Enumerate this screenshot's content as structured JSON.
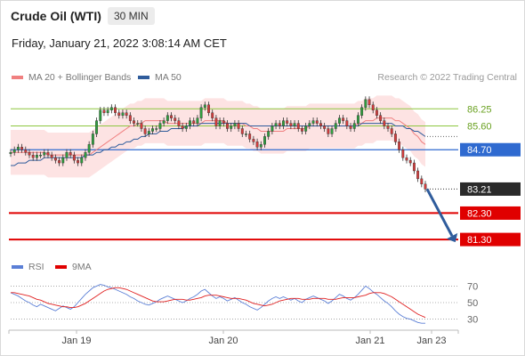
{
  "header": {
    "title": "Crude Oil (WTI)",
    "timeframe": "30 MIN",
    "datetime": "Friday, January 21, 2022 3:08:14 AM CET"
  },
  "legend": {
    "items": [
      {
        "label": "MA 20 + Bollinger Bands",
        "color": "#f08080"
      },
      {
        "label": "MA 50",
        "color": "#2f5c9c"
      }
    ],
    "credit": "Research © 2022 Trading Central"
  },
  "rsi_legend": {
    "items": [
      {
        "label": "RSI",
        "color": "#5b7fd6"
      },
      {
        "label": "9MA",
        "color": "#e02020"
      }
    ]
  },
  "chart_data": {
    "type": "candlestick",
    "x_ticks": [
      "Jan 19",
      "Jan 20",
      "Jan 21",
      "Jan 23"
    ],
    "ylim": [
      81.0,
      87.0
    ],
    "levels": [
      {
        "value": "86.25",
        "kind": "resistance-line",
        "color": "#8dc63f"
      },
      {
        "value": "85.60",
        "kind": "resistance-line",
        "color": "#8dc63f"
      },
      {
        "value": "84.70",
        "kind": "pivot",
        "color": "#2f6ad0"
      },
      {
        "value": "83.21",
        "kind": "last-price",
        "color": "#2a2a2a"
      },
      {
        "value": "82.30",
        "kind": "support",
        "color": "#e00000"
      },
      {
        "value": "81.30",
        "kind": "support",
        "color": "#e00000"
      }
    ],
    "close": [
      84.6,
      84.7,
      84.8,
      84.7,
      84.6,
      84.5,
      84.4,
      84.5,
      84.5,
      84.6,
      84.5,
      84.4,
      84.3,
      84.2,
      84.4,
      84.6,
      84.5,
      84.3,
      84.2,
      84.4,
      84.6,
      84.9,
      85.3,
      85.8,
      86.2,
      86.1,
      86.2,
      86.3,
      86.1,
      86.0,
      86.1,
      86.0,
      85.8,
      85.7,
      85.7,
      85.5,
      85.3,
      85.4,
      85.5,
      85.5,
      85.7,
      85.8,
      86.0,
      85.9,
      85.8,
      85.6,
      85.5,
      85.6,
      85.8,
      85.7,
      85.9,
      86.3,
      86.4,
      86.1,
      85.9,
      85.6,
      85.8,
      85.7,
      85.5,
      85.6,
      85.7,
      85.5,
      85.3,
      85.3,
      85.1,
      85.0,
      84.8,
      84.9,
      85.2,
      85.4,
      85.6,
      85.7,
      85.6,
      85.8,
      85.7,
      85.6,
      85.7,
      85.5,
      85.4,
      85.6,
      85.7,
      85.8,
      85.7,
      85.6,
      85.5,
      85.3,
      85.5,
      85.7,
      85.9,
      85.8,
      85.6,
      85.5,
      85.7,
      86.0,
      86.3,
      86.6,
      86.4,
      86.2,
      86.0,
      85.8,
      85.6,
      85.5,
      85.3,
      85.0,
      84.7,
      84.4,
      84.3,
      84.2,
      83.9,
      83.6,
      83.4,
      83.21
    ],
    "ma20": [
      84.6,
      84.6,
      84.6,
      84.6,
      84.6,
      84.6,
      84.6,
      84.6,
      84.6,
      84.6,
      84.5,
      84.5,
      84.5,
      84.5,
      84.5,
      84.5,
      84.5,
      84.5,
      84.5,
      84.5,
      84.5,
      84.5,
      84.6,
      84.7,
      84.8,
      84.9,
      85.0,
      85.1,
      85.2,
      85.3,
      85.4,
      85.5,
      85.6,
      85.6,
      85.7,
      85.7,
      85.8,
      85.8,
      85.8,
      85.8,
      85.8,
      85.8,
      85.7,
      85.7,
      85.7,
      85.7,
      85.7,
      85.7,
      85.7,
      85.7,
      85.7,
      85.7,
      85.8,
      85.8,
      85.8,
      85.8,
      85.8,
      85.8,
      85.7,
      85.7,
      85.7,
      85.7,
      85.7,
      85.6,
      85.6,
      85.5,
      85.5,
      85.4,
      85.4,
      85.4,
      85.4,
      85.4,
      85.4,
      85.4,
      85.5,
      85.5,
      85.5,
      85.5,
      85.5,
      85.5,
      85.6,
      85.6,
      85.6,
      85.6,
      85.6,
      85.6,
      85.6,
      85.6,
      85.6,
      85.6,
      85.6,
      85.6,
      85.6,
      85.7,
      85.7,
      85.8,
      85.8,
      85.8,
      85.9,
      85.9,
      85.9,
      85.9,
      85.9,
      85.8,
      85.8,
      85.7,
      85.6,
      85.5,
      85.3,
      85.2,
      85.0,
      84.9
    ],
    "ma50": [
      84.1,
      84.1,
      84.2,
      84.2,
      84.2,
      84.3,
      84.3,
      84.3,
      84.3,
      84.4,
      84.4,
      84.4,
      84.4,
      84.4,
      84.4,
      84.4,
      84.4,
      84.4,
      84.4,
      84.4,
      84.5,
      84.5,
      84.5,
      84.6,
      84.6,
      84.7,
      84.7,
      84.8,
      84.8,
      84.9,
      84.9,
      85.0,
      85.0,
      85.1,
      85.1,
      85.2,
      85.2,
      85.3,
      85.3,
      85.3,
      85.4,
      85.4,
      85.4,
      85.5,
      85.5,
      85.5,
      85.5,
      85.6,
      85.6,
      85.6,
      85.6,
      85.7,
      85.7,
      85.7,
      85.7,
      85.7,
      85.7,
      85.7,
      85.7,
      85.7,
      85.7,
      85.7,
      85.7,
      85.7,
      85.6,
      85.6,
      85.6,
      85.6,
      85.6,
      85.6,
      85.6,
      85.6,
      85.6,
      85.6,
      85.6,
      85.6,
      85.6,
      85.6,
      85.6,
      85.6,
      85.6,
      85.6,
      85.6,
      85.6,
      85.6,
      85.6,
      85.6,
      85.6,
      85.6,
      85.6,
      85.6,
      85.6,
      85.6,
      85.6,
      85.7,
      85.7,
      85.7,
      85.7,
      85.7,
      85.7,
      85.7,
      85.7,
      85.7,
      85.6,
      85.6,
      85.6,
      85.5,
      85.5,
      85.4,
      85.4,
      85.3,
      85.2
    ],
    "bb_width": 0.85,
    "forecast_arrow": {
      "from": 83.21,
      "to": 81.3
    },
    "rsi": {
      "ticks": [
        "70",
        "50",
        "30"
      ],
      "ylim": [
        22,
        78
      ],
      "rsi": [
        62,
        60,
        58,
        55,
        52,
        50,
        47,
        45,
        48,
        46,
        44,
        42,
        40,
        43,
        46,
        44,
        42,
        45,
        50,
        55,
        60,
        64,
        68,
        70,
        72,
        71,
        69,
        68,
        66,
        64,
        62,
        60,
        57,
        55,
        52,
        50,
        48,
        47,
        49,
        51,
        54,
        56,
        58,
        56,
        54,
        52,
        50,
        52,
        55,
        57,
        60,
        64,
        66,
        62,
        58,
        55,
        57,
        55,
        52,
        54,
        56,
        53,
        50,
        48,
        45,
        43,
        41,
        44,
        48,
        52,
        55,
        57,
        55,
        57,
        55,
        53,
        55,
        52,
        50,
        54,
        56,
        58,
        56,
        54,
        52,
        49,
        52,
        56,
        60,
        58,
        55,
        53,
        56,
        60,
        65,
        70,
        67,
        63,
        60,
        56,
        52,
        49,
        45,
        40,
        36,
        33,
        31,
        30,
        28,
        26,
        25,
        25
      ],
      "ma9": [
        62,
        62,
        61,
        60,
        59,
        58,
        56,
        54,
        53,
        51,
        49,
        48,
        47,
        46,
        45,
        45,
        44,
        44,
        45,
        47,
        49,
        52,
        55,
        58,
        61,
        64,
        66,
        67,
        68,
        68,
        67,
        66,
        64,
        62,
        60,
        58,
        56,
        54,
        52,
        51,
        51,
        51,
        52,
        53,
        54,
        54,
        54,
        53,
        53,
        54,
        55,
        56,
        58,
        59,
        59,
        59,
        58,
        57,
        56,
        55,
        55,
        55,
        54,
        53,
        51,
        49,
        48,
        47,
        46,
        47,
        48,
        50,
        52,
        53,
        54,
        55,
        55,
        55,
        54,
        54,
        54,
        55,
        55,
        55,
        55,
        54,
        54,
        54,
        55,
        56,
        56,
        56,
        56,
        57,
        58,
        59,
        61,
        62,
        62,
        62,
        61,
        59,
        57,
        54,
        51,
        48,
        45,
        42,
        39,
        36,
        34,
        32
      ]
    }
  }
}
